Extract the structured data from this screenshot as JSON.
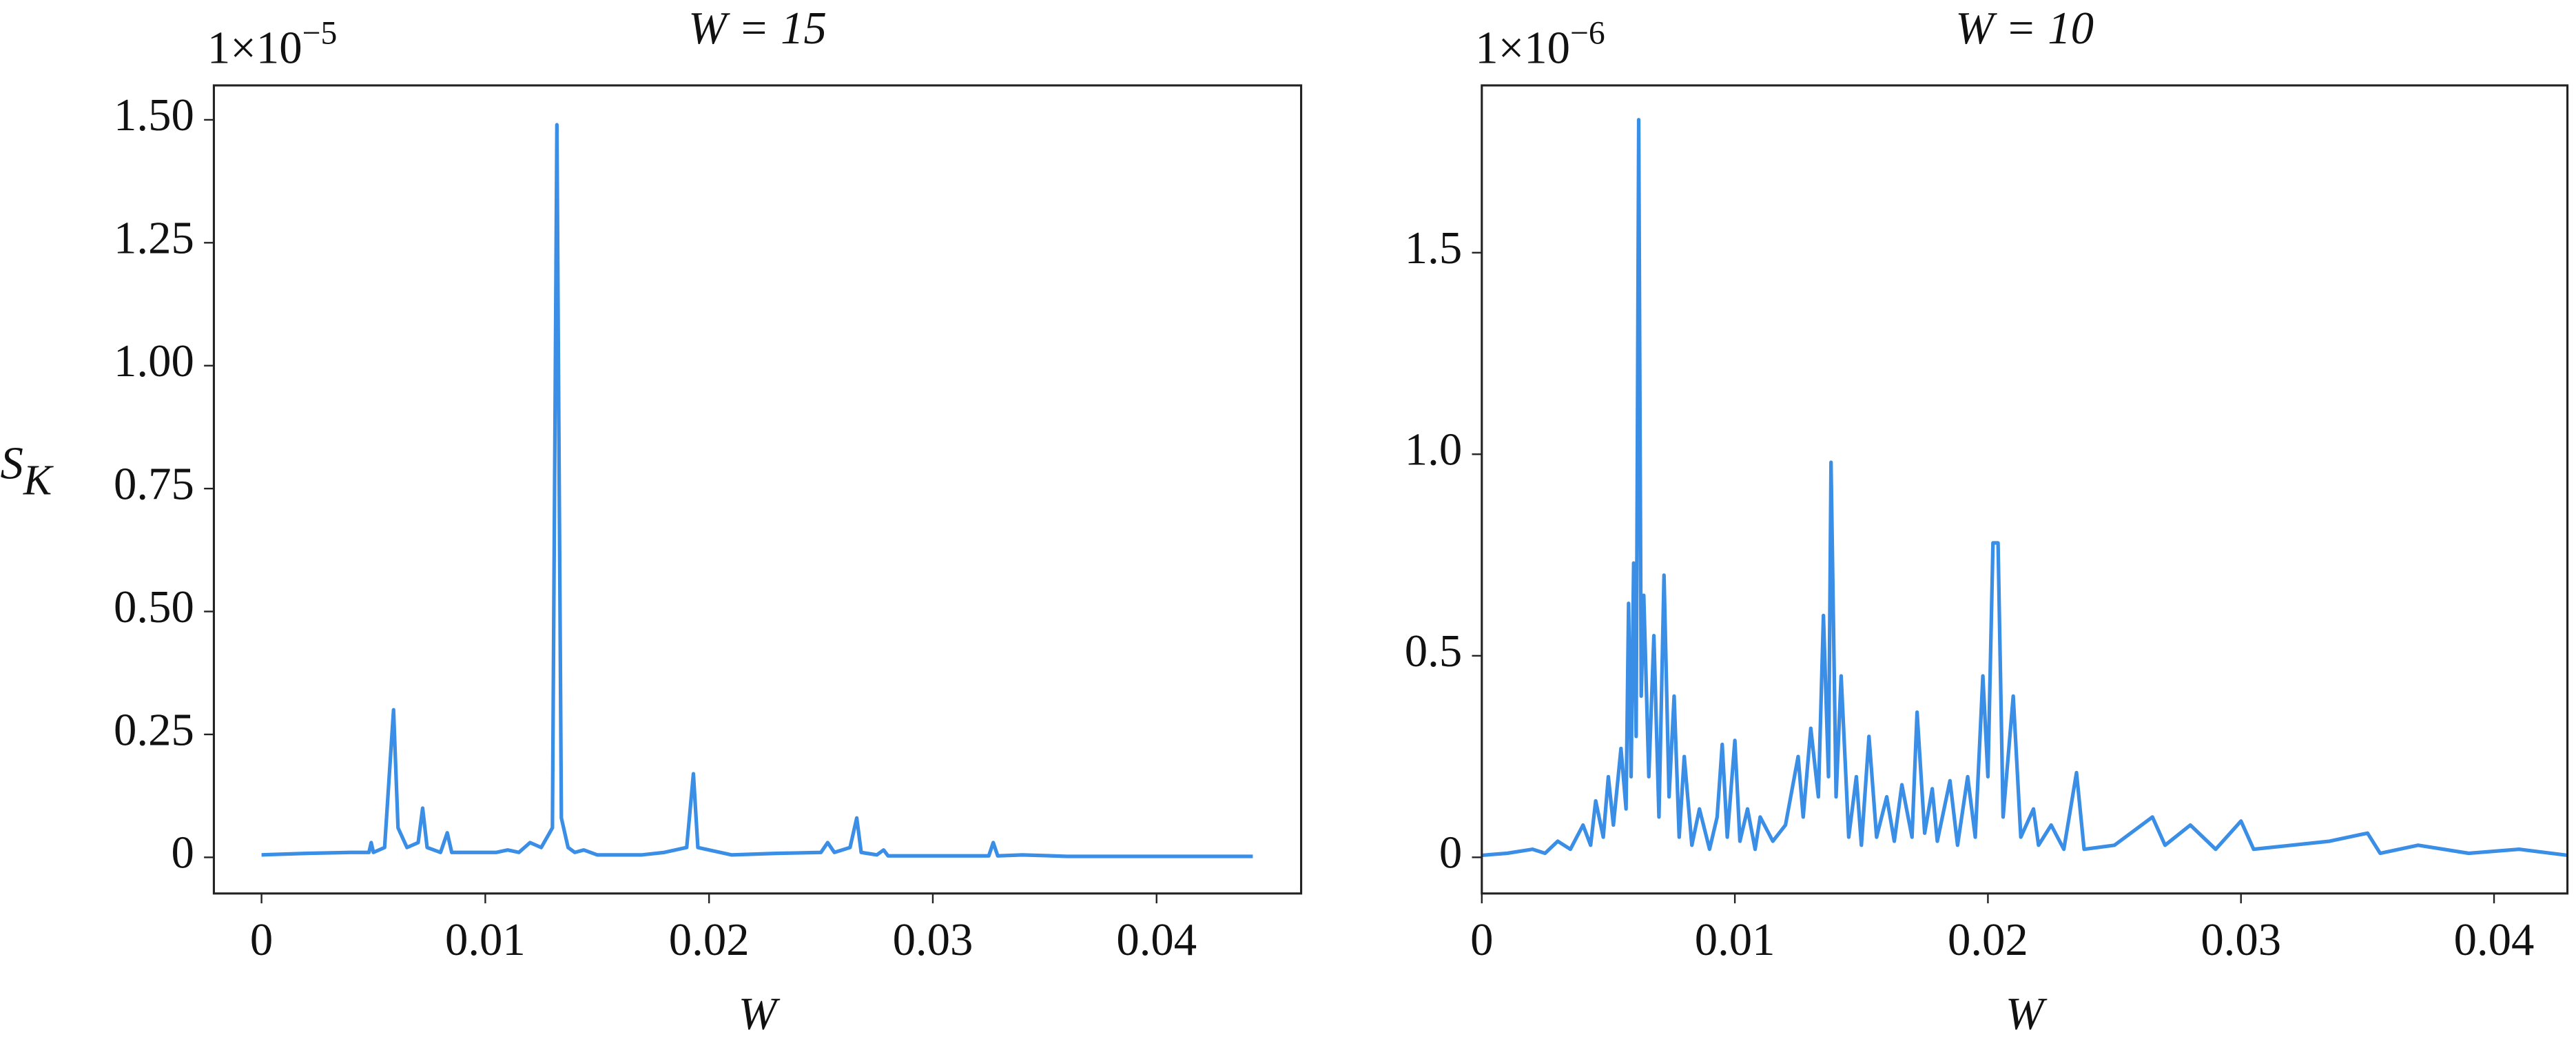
{
  "chart_data": [
    {
      "type": "line",
      "title": "W = 15",
      "offset_base": "1×10",
      "offset_exponent": "−5",
      "xlabel": "W",
      "ylabel": "S",
      "ylabel_subscript": "K",
      "xlim": [
        -0.00213,
        0.04646
      ],
      "ylim": [
        -0.0735,
        1.57
      ],
      "xticks": [
        0,
        0.01,
        0.02,
        0.03,
        0.04
      ],
      "yticks": [
        0,
        0.25,
        {
          "value": 0.5,
          "label": "0.50"
        },
        0.75,
        {
          "value": 1,
          "label": "1.00"
        },
        1.25,
        {
          "value": 1.5,
          "label": "1.50"
        }
      ],
      "x": [
        0,
        0.002,
        0.004,
        0.0048,
        0.0049,
        0.005,
        0.0055,
        0.0059,
        0.0061,
        0.0065,
        0.007,
        0.0072,
        0.0074,
        0.008,
        0.0083,
        0.0085,
        0.0095,
        0.0105,
        0.011,
        0.0115,
        0.012,
        0.0125,
        0.013,
        0.0132,
        0.0134,
        0.0137,
        0.014,
        0.0144,
        0.015,
        0.017,
        0.018,
        0.019,
        0.0193,
        0.0195,
        0.021,
        0.023,
        0.025,
        0.0253,
        0.0256,
        0.0263,
        0.0266,
        0.0268,
        0.0275,
        0.0278,
        0.028,
        0.031,
        0.0325,
        0.0327,
        0.0329,
        0.034,
        0.036,
        0.04,
        0.0443
      ],
      "series": [
        {
          "color": "#3a8ee6",
          "values": [
            0.005,
            0.008,
            0.01,
            0.01,
            0.03,
            0.01,
            0.02,
            0.3,
            0.06,
            0.02,
            0.03,
            0.1,
            0.02,
            0.01,
            0.05,
            0.01,
            0.01,
            0.01,
            0.015,
            0.01,
            0.03,
            0.02,
            0.06,
            1.49,
            0.08,
            0.02,
            0.01,
            0.015,
            0.005,
            0.005,
            0.01,
            0.02,
            0.17,
            0.02,
            0.005,
            0.008,
            0.01,
            0.03,
            0.01,
            0.02,
            0.08,
            0.01,
            0.005,
            0.015,
            0.003,
            0.003,
            0.003,
            0.03,
            0.003,
            0.005,
            0.002,
            0.002,
            0.002
          ]
        }
      ]
    },
    {
      "type": "line",
      "title": "W = 10",
      "offset_base": "1×10",
      "offset_exponent": "−6",
      "xlabel": "W",
      "xlim": [
        0,
        0.0429
      ],
      "ylim": [
        -0.0897,
        1.915
      ],
      "xticks": [
        0,
        0.01,
        0.02,
        0.03,
        0.04
      ],
      "yticks": [
        0,
        0.5,
        {
          "value": 1,
          "label": "1.0"
        },
        1.5
      ],
      "x": [
        0,
        0.001,
        0.002,
        0.0025,
        0.003,
        0.0035,
        0.004,
        0.0043,
        0.0045,
        0.0048,
        0.005,
        0.0052,
        0.0055,
        0.0057,
        0.0058,
        0.0059,
        0.006,
        0.0061,
        0.0062,
        0.0063,
        0.0064,
        0.0066,
        0.0068,
        0.007,
        0.0072,
        0.0074,
        0.0076,
        0.0078,
        0.008,
        0.0083,
        0.0086,
        0.009,
        0.0093,
        0.0095,
        0.0097,
        0.01,
        0.0102,
        0.0105,
        0.0108,
        0.011,
        0.0115,
        0.012,
        0.0125,
        0.0127,
        0.013,
        0.0133,
        0.0135,
        0.0137,
        0.0138,
        0.014,
        0.0142,
        0.0145,
        0.0148,
        0.015,
        0.0153,
        0.0156,
        0.016,
        0.0163,
        0.0166,
        0.017,
        0.0172,
        0.0175,
        0.0178,
        0.018,
        0.0185,
        0.0188,
        0.0192,
        0.0195,
        0.0198,
        0.02,
        0.0202,
        0.0204,
        0.0206,
        0.021,
        0.0213,
        0.0218,
        0.022,
        0.0225,
        0.023,
        0.0235,
        0.0238,
        0.025,
        0.0265,
        0.027,
        0.028,
        0.029,
        0.03,
        0.0305,
        0.032,
        0.0335,
        0.035,
        0.0355,
        0.037,
        0.039,
        0.041,
        0.0429
      ],
      "series": [
        {
          "color": "#3a8ee6",
          "values": [
            0.005,
            0.01,
            0.02,
            0.01,
            0.04,
            0.02,
            0.08,
            0.03,
            0.14,
            0.05,
            0.2,
            0.08,
            0.27,
            0.12,
            0.63,
            0.2,
            0.73,
            0.3,
            1.83,
            0.4,
            0.65,
            0.2,
            0.55,
            0.1,
            0.7,
            0.15,
            0.4,
            0.05,
            0.25,
            0.03,
            0.12,
            0.02,
            0.1,
            0.28,
            0.05,
            0.29,
            0.04,
            0.12,
            0.02,
            0.1,
            0.04,
            0.08,
            0.25,
            0.1,
            0.32,
            0.15,
            0.6,
            0.2,
            0.98,
            0.15,
            0.45,
            0.05,
            0.2,
            0.03,
            0.3,
            0.05,
            0.15,
            0.04,
            0.18,
            0.05,
            0.36,
            0.06,
            0.17,
            0.04,
            0.19,
            0.03,
            0.2,
            0.05,
            0.45,
            0.2,
            0.78,
            0.78,
            0.1,
            0.4,
            0.05,
            0.12,
            0.03,
            0.08,
            0.02,
            0.21,
            0.02,
            0.03,
            0.1,
            0.03,
            0.08,
            0.02,
            0.09,
            0.02,
            0.03,
            0.04,
            0.06,
            0.01,
            0.03,
            0.01,
            0.02,
            0.005
          ]
        }
      ]
    }
  ]
}
